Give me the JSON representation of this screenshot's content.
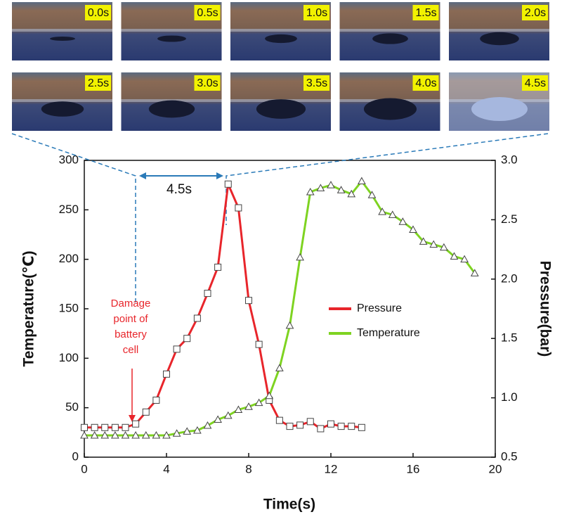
{
  "chart_data": {
    "type": "line",
    "frame_labels": [
      "0.0s",
      "0.5s",
      "1.0s",
      "1.5s",
      "2.0s",
      "2.5s",
      "3.0s",
      "3.5s",
      "4.0s",
      "4.5s"
    ],
    "xlabel": "Time(s)",
    "ylabel": "Temperature(℃)",
    "y2label": "Pressure(bar)",
    "xlim": [
      0,
      20
    ],
    "xticks": [
      0,
      4,
      8,
      12,
      16,
      20
    ],
    "ylim": [
      0,
      300
    ],
    "yticks": [
      0,
      50,
      100,
      150,
      200,
      250,
      300
    ],
    "y2lim": [
      0.5,
      3
    ],
    "y2ticks": [
      0.5,
      {
        "value": 1,
        "label": "1.0"
      },
      1.5,
      {
        "value": 2,
        "label": "2.0"
      },
      2.5,
      {
        "value": 3,
        "label": "3.0"
      }
    ],
    "interval_label": "4.5s",
    "damage_label": [
      "Damage",
      "point of",
      "battery",
      "cell"
    ],
    "series": [
      {
        "name": "Pressure",
        "color": "#e8252b",
        "axis": "y2",
        "marker": "square",
        "x": [
          0,
          0.5,
          1,
          1.5,
          2,
          2.5,
          3,
          3.5,
          4,
          4.5,
          5,
          5.5,
          6,
          6.5,
          7,
          7.5,
          8,
          8.5,
          9,
          9.5,
          10,
          10.5,
          11,
          11.5,
          12,
          12.5,
          13,
          13.5
        ],
        "values": [
          0.75,
          0.75,
          0.75,
          0.75,
          0.75,
          0.78,
          0.88,
          0.98,
          1.2,
          1.41,
          1.5,
          1.67,
          1.88,
          2.1,
          2.8,
          2.6,
          1.82,
          1.45,
          0.98,
          0.81,
          0.76,
          0.77,
          0.8,
          0.74,
          0.78,
          0.76,
          0.76,
          0.75
        ]
      },
      {
        "name": "Temperature",
        "color": "#7ed321",
        "axis": "y",
        "marker": "triangle",
        "x": [
          0,
          0.5,
          1,
          1.5,
          2,
          2.5,
          3,
          3.5,
          4,
          4.5,
          5,
          5.5,
          6,
          6.5,
          7,
          7.5,
          8,
          8.5,
          9,
          9.5,
          10,
          10.5,
          11,
          11.5,
          12,
          12.5,
          13,
          13.5,
          14,
          14.5,
          15,
          15.5,
          16,
          16.5,
          17,
          17.5,
          18,
          18.5,
          19
        ],
        "values": [
          22,
          22,
          22,
          22,
          22,
          22,
          22,
          22,
          22,
          24,
          26,
          27,
          32,
          38,
          42,
          48,
          51,
          55,
          62,
          90,
          133,
          202,
          268,
          272,
          275,
          270,
          266,
          279,
          265,
          248,
          245,
          238,
          230,
          218,
          215,
          212,
          203,
          200,
          186
        ]
      }
    ]
  }
}
